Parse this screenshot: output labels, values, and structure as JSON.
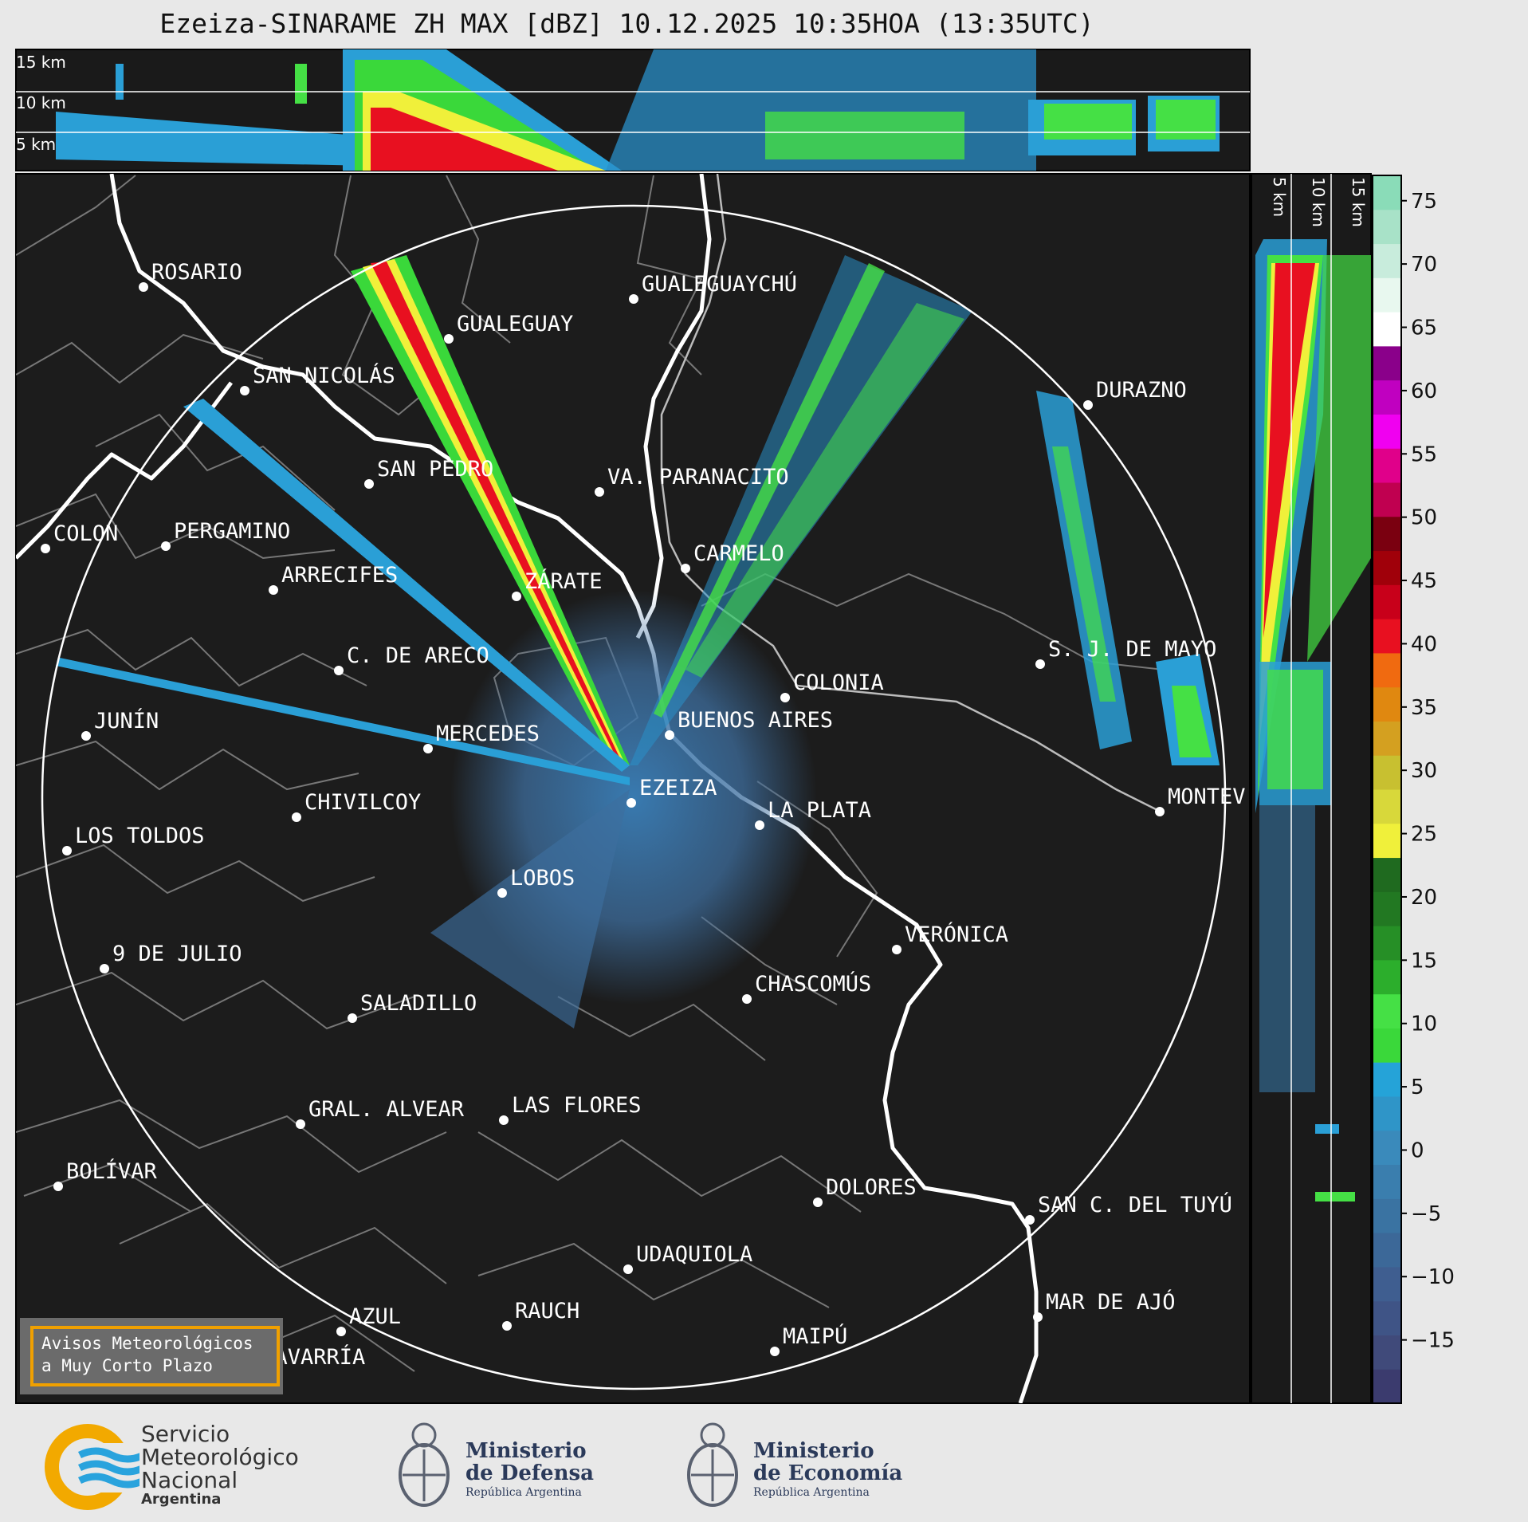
{
  "title": "Ezeiza-SINARAME ZH MAX [dBZ] 10.12.2025 10:35HOA (13:35UTC)",
  "height_labels_top": [
    "15 km",
    "10 km",
    "5 km"
  ],
  "height_labels_side": [
    "5 km",
    "10 km",
    "15 km"
  ],
  "radar_site": "EZEIZA",
  "cities": [
    {
      "name": "ROSARIO"
    },
    {
      "name": "GUALEGUAYCHÚ"
    },
    {
      "name": "GUALEGUAY"
    },
    {
      "name": "SAN NICOLÁS"
    },
    {
      "name": "DURAZNO"
    },
    {
      "name": "SAN PEDRO"
    },
    {
      "name": "VA. PARANACITO"
    },
    {
      "name": "COLON"
    },
    {
      "name": "PERGAMINO"
    },
    {
      "name": "CARMELO"
    },
    {
      "name": "ARRECIFES"
    },
    {
      "name": "ZÁRATE"
    },
    {
      "name": "S. J. DE MAYO"
    },
    {
      "name": "C. DE ARECO"
    },
    {
      "name": "COLONIA"
    },
    {
      "name": "JUNÍN"
    },
    {
      "name": "BUENOS AIRES"
    },
    {
      "name": "MERCEDES"
    },
    {
      "name": "MONTEV"
    },
    {
      "name": "EZEIZA"
    },
    {
      "name": "CHIVILCOY"
    },
    {
      "name": "LA PLATA"
    },
    {
      "name": "LOS TOLDOS"
    },
    {
      "name": "LOBOS"
    },
    {
      "name": "VERÓNICA"
    },
    {
      "name": "9 DE JULIO"
    },
    {
      "name": "CHASCOMÚS"
    },
    {
      "name": "SALADILLO"
    },
    {
      "name": "GRAL. ALVEAR"
    },
    {
      "name": "LAS FLORES"
    },
    {
      "name": "BOLÍVAR"
    },
    {
      "name": "DOLORES"
    },
    {
      "name": "SAN C. DEL TUYÚ"
    },
    {
      "name": "UDAQUIOLA"
    },
    {
      "name": "AZUL"
    },
    {
      "name": "RAUCH"
    },
    {
      "name": "MAR DE AJÓ"
    },
    {
      "name": "OLAVARRÍA"
    },
    {
      "name": "MAIPÚ"
    }
  ],
  "colorbar": {
    "unit": "dBZ",
    "ticks": [
      "75",
      "70",
      "65",
      "60",
      "55",
      "50",
      "45",
      "40",
      "35",
      "30",
      "25",
      "20",
      "15",
      "10",
      "5",
      "0",
      "−5",
      "−10",
      "−15"
    ],
    "colors": [
      "#3b3b6e",
      "#404a7a",
      "#3f5486",
      "#3f5e90",
      "#3c6898",
      "#3a73a2",
      "#3a7eae",
      "#3a8abb",
      "#2f95c8",
      "#25a3d8",
      "#3ad83a",
      "#45e045",
      "#2cae2c",
      "#268f26",
      "#227822",
      "#1f6a1f",
      "#f0f03a",
      "#d8d83a",
      "#c8c030",
      "#d4a020",
      "#e08810",
      "#f06a10",
      "#e81020",
      "#c8001a",
      "#a0000a",
      "#7a0010",
      "#c00050",
      "#e0008a",
      "#f000f0",
      "#c000c0",
      "#8a008a",
      "#ffffff",
      "#e8f8ef",
      "#c8ecdc",
      "#a8e2c8",
      "#8adcb8"
    ]
  },
  "warning_box": {
    "line1": "Avisos Meteorológicos",
    "line2": "a Muy Corto Plazo"
  },
  "footer": {
    "smn": {
      "line1": "Servicio",
      "line2": "Meteorológico",
      "line3": "Nacional",
      "line4": "Argentina"
    },
    "defensa": {
      "line1": "Ministerio",
      "line2": "de Defensa",
      "line3": "República Argentina"
    },
    "economia": {
      "line1": "Ministerio",
      "line2": "de Economía",
      "line3": "República Argentina"
    }
  }
}
